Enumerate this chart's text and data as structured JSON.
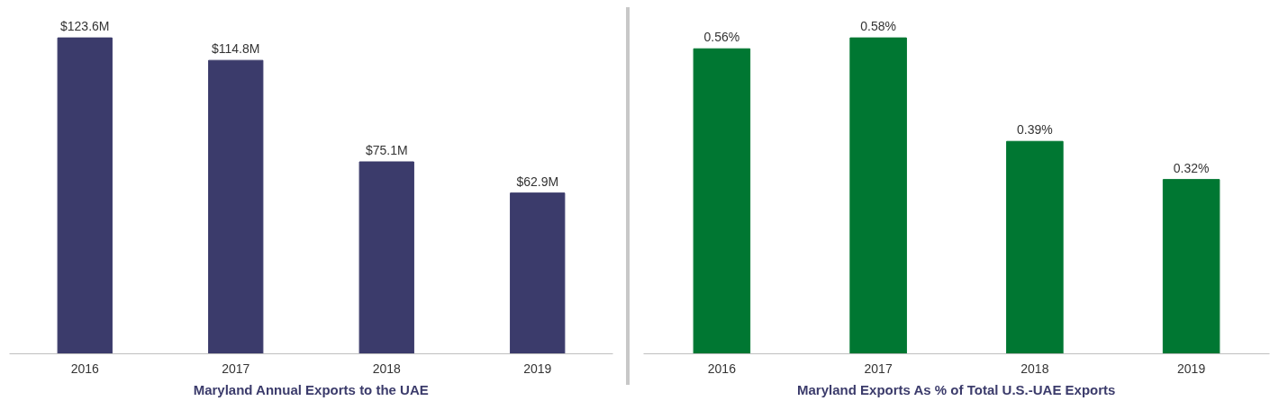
{
  "chart_data": [
    {
      "type": "bar",
      "title": "Maryland Annual Exports to the UAE",
      "categories": [
        "2016",
        "2017",
        "2018",
        "2019"
      ],
      "values": [
        123.6,
        114.8,
        75.1,
        62.9
      ],
      "value_labels": [
        "$123.6M",
        "$114.8M",
        "$75.1M",
        "$62.9M"
      ],
      "color": "#3b3b6b"
    },
    {
      "type": "bar",
      "title": "Maryland Exports As % of Total U.S.-UAE Exports",
      "categories": [
        "2016",
        "2017",
        "2018",
        "2019"
      ],
      "values": [
        0.56,
        0.58,
        0.39,
        0.32
      ],
      "value_labels": [
        "0.56%",
        "0.58%",
        "0.39%",
        "0.32%"
      ],
      "color": "#007732"
    }
  ]
}
